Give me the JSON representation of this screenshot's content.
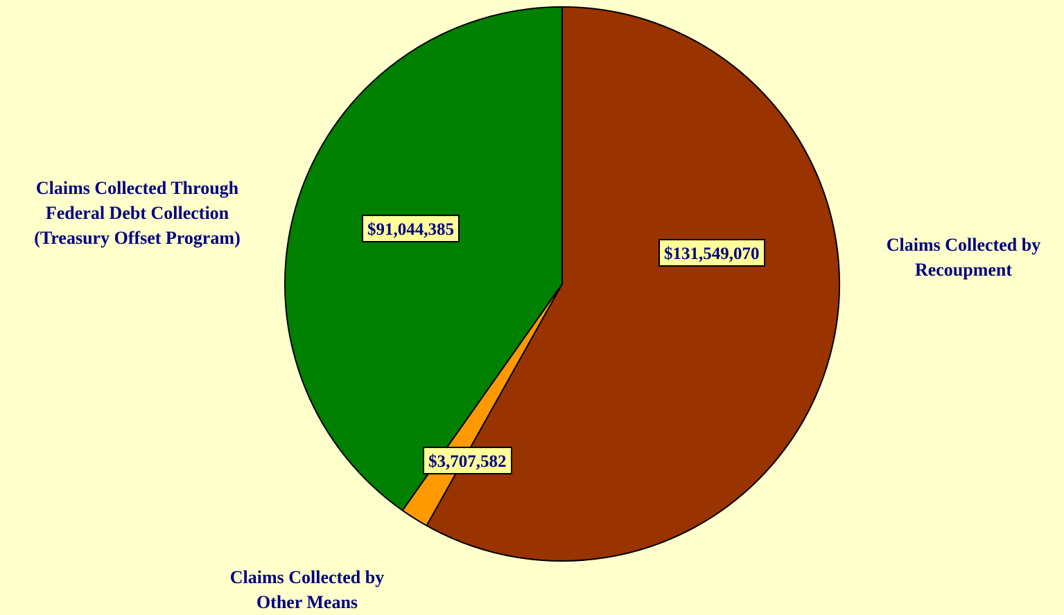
{
  "chart_data": {
    "type": "pie",
    "slices": [
      {
        "label_lines": [
          "Claims Collected by",
          "Recoupment"
        ],
        "value": 131549070,
        "value_label": "$131,549,070",
        "color": "#993300"
      },
      {
        "label_lines": [
          "Claims Collected by",
          "Other Means"
        ],
        "value": 3707582,
        "value_label": "$3,707,582",
        "color": "#FF9900"
      },
      {
        "label_lines": [
          "Claims Collected Through",
          "Federal Debt Collection",
          "(Treasury Offset Program)"
        ],
        "value": 91044385,
        "value_label": "$91,044,385",
        "color": "#008000"
      }
    ],
    "background_color": "#FFFFCC",
    "label_color": "#000080",
    "value_box_color": "#FFFF99"
  }
}
